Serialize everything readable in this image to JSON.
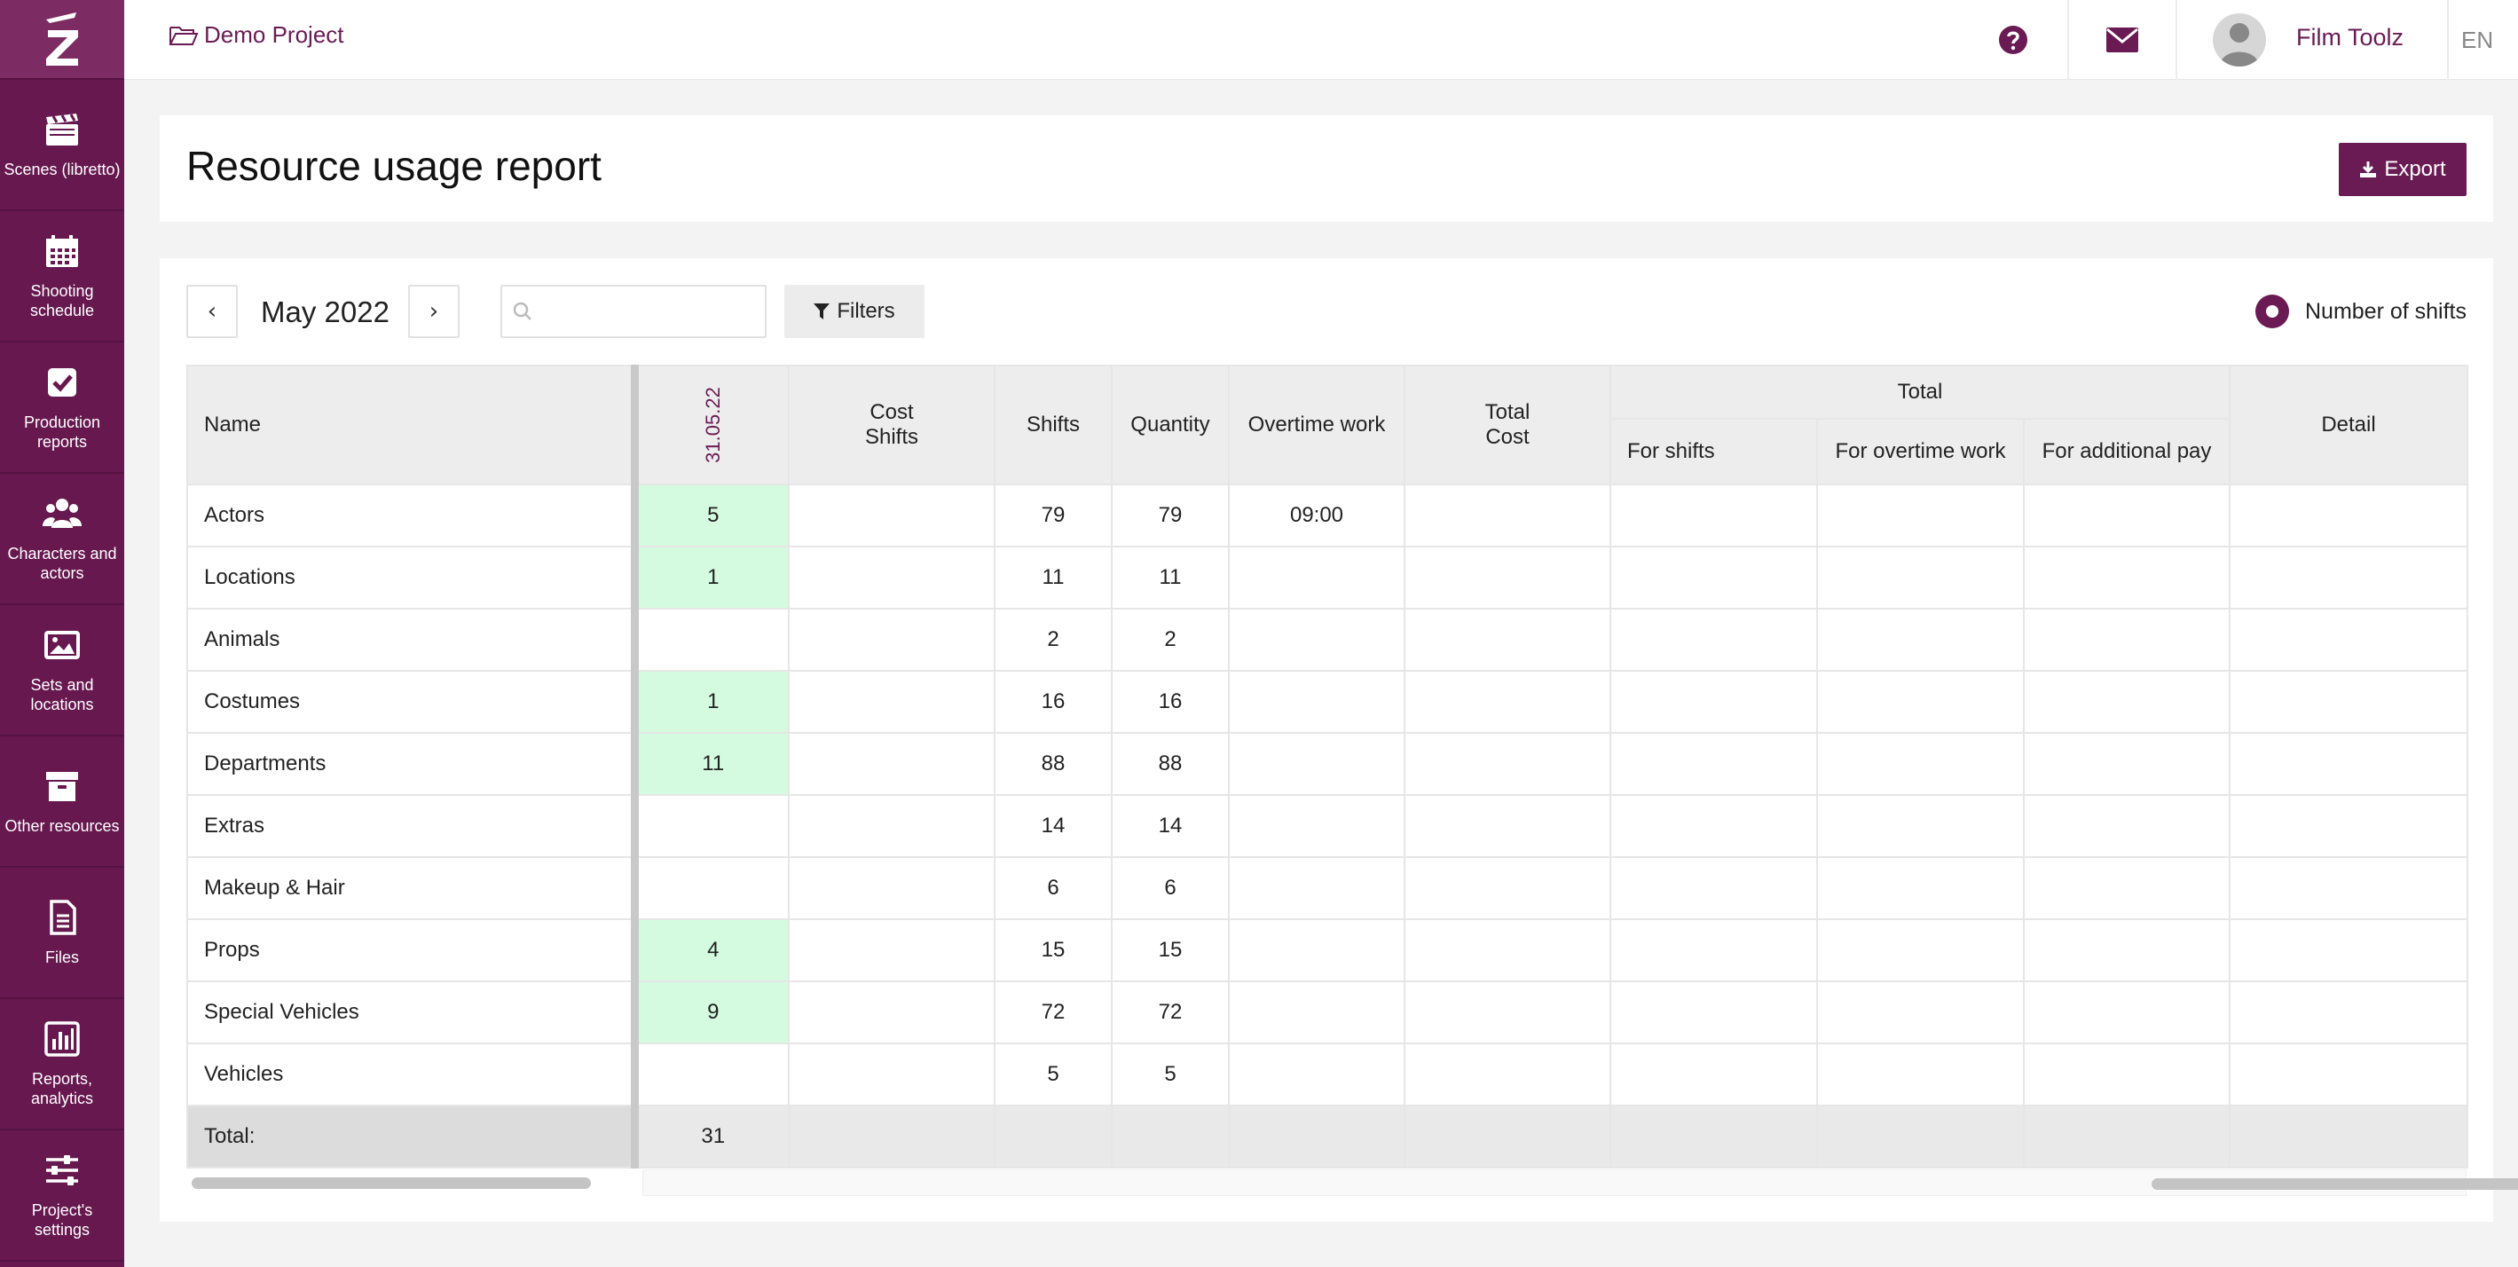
{
  "topbar": {
    "project_name": "Demo Project",
    "user_name": "Film Toolz",
    "language": "EN"
  },
  "sidebar": {
    "items": [
      {
        "label": "Scenes (libretto)",
        "icon": "clapperboard-icon"
      },
      {
        "label": "Shooting schedule",
        "icon": "calendar-icon"
      },
      {
        "label": "Production reports",
        "icon": "checkbox-icon"
      },
      {
        "label": "Characters and actors",
        "icon": "users-icon"
      },
      {
        "label": "Sets and locations",
        "icon": "image-icon"
      },
      {
        "label": "Other resources",
        "icon": "archive-icon"
      },
      {
        "label": "Files",
        "icon": "file-icon"
      },
      {
        "label": "Reports, analytics",
        "icon": "bar-chart-icon"
      },
      {
        "label": "Project's settings",
        "icon": "sliders-icon"
      }
    ]
  },
  "header": {
    "title": "Resource usage report",
    "export_label": "Export"
  },
  "toolbar": {
    "prev_label": "‹",
    "month": "May 2022",
    "next_label": "›",
    "search_value": "",
    "filters_label": "Filters",
    "toggle_label": "Number of shifts"
  },
  "table": {
    "headers": {
      "name": "Name",
      "date": "31.05.22",
      "cost_line1": "Cost",
      "cost_line2": "Shifts",
      "shifts": "Shifts",
      "quantity": "Quantity",
      "overtime": "Overtime work",
      "total_cost_line1": "Total",
      "total_cost_line2": "Cost",
      "total": "Total",
      "for_shifts": "For shifts",
      "for_overtime": "For overtime work",
      "for_additional": "For additional pay",
      "detail": "Detail"
    },
    "rows": [
      {
        "name": "Actors",
        "date": "5",
        "shifts": "79",
        "quantity": "79",
        "overtime": "09:00"
      },
      {
        "name": "Locations",
        "date": "1",
        "shifts": "11",
        "quantity": "11",
        "overtime": ""
      },
      {
        "name": "Animals",
        "date": "",
        "shifts": "2",
        "quantity": "2",
        "overtime": ""
      },
      {
        "name": "Costumes",
        "date": "1",
        "shifts": "16",
        "quantity": "16",
        "overtime": ""
      },
      {
        "name": "Departments",
        "date": "11",
        "shifts": "88",
        "quantity": "88",
        "overtime": ""
      },
      {
        "name": "Extras",
        "date": "",
        "shifts": "14",
        "quantity": "14",
        "overtime": ""
      },
      {
        "name": "Makeup & Hair",
        "date": "",
        "shifts": "6",
        "quantity": "6",
        "overtime": ""
      },
      {
        "name": "Props",
        "date": "4",
        "shifts": "15",
        "quantity": "15",
        "overtime": ""
      },
      {
        "name": "Special Vehicles",
        "date": "9",
        "shifts": "72",
        "quantity": "72",
        "overtime": ""
      },
      {
        "name": "Vehicles",
        "date": "",
        "shifts": "5",
        "quantity": "5",
        "overtime": ""
      }
    ],
    "footer": {
      "label": "Total:",
      "date_total": "31"
    }
  },
  "colors": {
    "brand": "#66184f",
    "accent": "#6a1b54",
    "highlight": "#d4fbdf"
  }
}
